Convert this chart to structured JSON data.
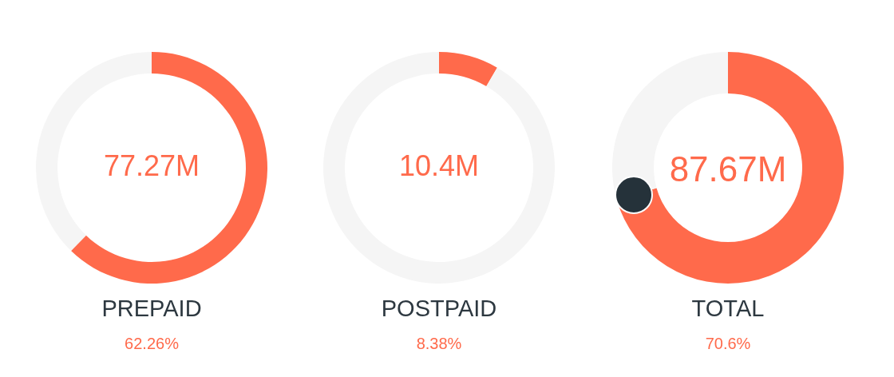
{
  "chart_data": [
    {
      "type": "donut",
      "title": "PREPAID",
      "subtitle": "62.26%",
      "annotations": [
        "77.27M"
      ],
      "categories": [
        null,
        null
      ],
      "values": [
        62.26,
        37.74
      ],
      "colors": [
        "#ff6a4b",
        "#f5f5f5"
      ]
    },
    {
      "type": "donut",
      "title": "POSTPAID",
      "subtitle": "8.38%",
      "annotations": [
        "10.4M"
      ],
      "categories": [
        null,
        null
      ],
      "values": [
        8.38,
        91.62
      ],
      "colors": [
        "#ff6a4b",
        "#f5f5f5"
      ]
    },
    {
      "type": "donut",
      "title": "TOTAL",
      "subtitle": "70.6%",
      "annotations": [
        "87.67M"
      ],
      "categories": [
        null,
        null
      ],
      "values": [
        70.6,
        29.4
      ],
      "colors": [
        "#ff6a4b",
        "#f5f5f5"
      ]
    }
  ]
}
